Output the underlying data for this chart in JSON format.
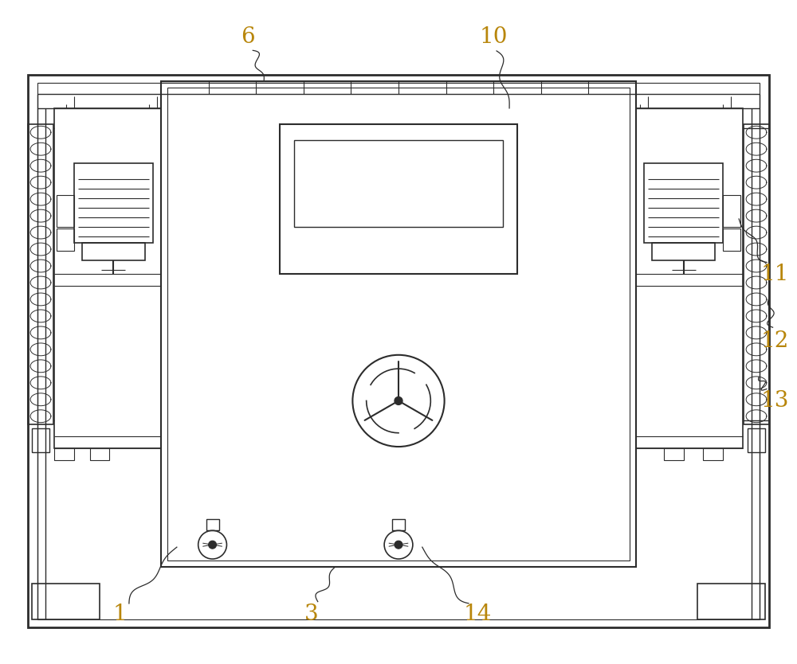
{
  "bg_color": "#ffffff",
  "line_color": "#2c2c2c",
  "label_color": "#b8860b",
  "figsize": [
    10.0,
    8.34
  ],
  "dpi": 100
}
